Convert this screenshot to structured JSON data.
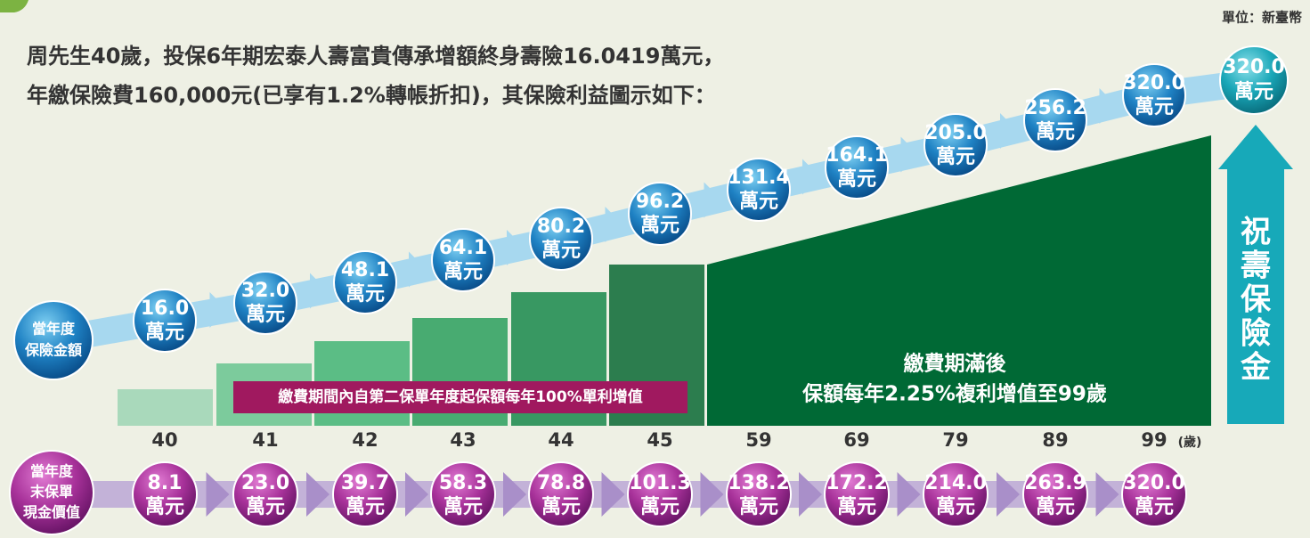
{
  "unit_note": "單位：新臺幣",
  "intro": [
    "周先生40歲，投保6年期宏泰人壽富貴傳承增額終身壽險16.0419萬元，",
    "年繳保險費160,000元(已享有1.2%轉帳折扣)，其保險利益圖示如下："
  ],
  "sum_insured_label": [
    "當年度",
    "保險金額"
  ],
  "sum_insured": [
    "16.0",
    "32.0",
    "48.1",
    "64.1",
    "80.2",
    "96.2",
    "131.4",
    "164.1",
    "205.0",
    "256.2",
    "320.0"
  ],
  "bubble_unit": "萬元",
  "final_benefit": "320.0",
  "death_benefit_label": [
    "祝",
    "壽",
    "保",
    "險",
    "金"
  ],
  "ages": [
    "40",
    "41",
    "42",
    "43",
    "44",
    "45",
    "59",
    "69",
    "79",
    "89",
    "99"
  ],
  "age_unit": "(歲)",
  "note_payment_period": "繳費期間內自第二保單年度起保額每年100%單利增值",
  "note_after_payment": [
    "繳費期滿後",
    "保額每年2.25%複利增值至99歲"
  ],
  "cash_value_label": [
    "當年度",
    "末保單",
    "現金價值"
  ],
  "cash_values": [
    "8.1",
    "23.0",
    "39.7",
    "58.3",
    "78.8",
    "101.3",
    "138.2",
    "172.2",
    "214.0",
    "263.9",
    "320.0"
  ]
}
